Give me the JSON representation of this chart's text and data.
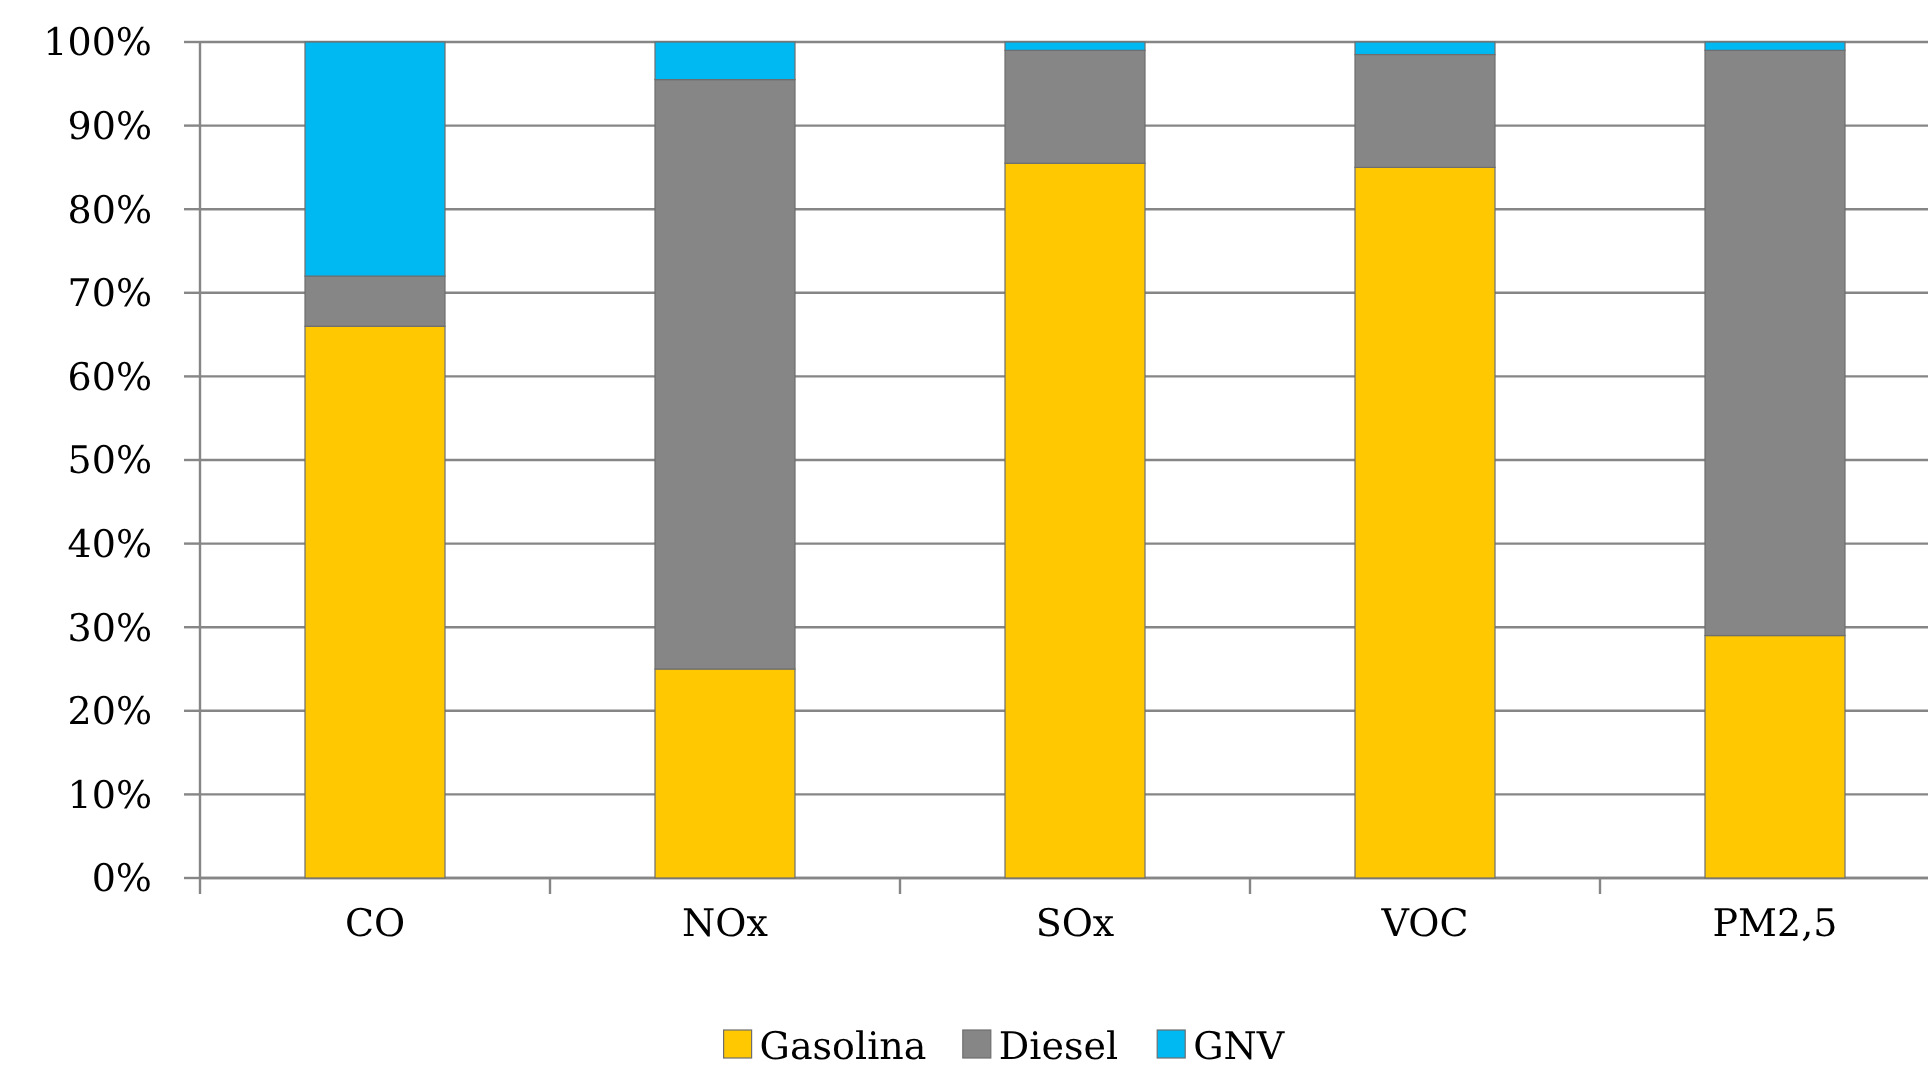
{
  "chart_data": {
    "type": "bar",
    "stacked": true,
    "categories": [
      "CO",
      "NOx",
      "SOx",
      "VOC",
      "PM2,5"
    ],
    "series": [
      {
        "name": "Gasolina",
        "color": "#ffc800",
        "values": [
          66,
          25,
          85.5,
          85,
          29
        ]
      },
      {
        "name": "Diesel",
        "color": "#868686",
        "values": [
          6,
          70.5,
          13.5,
          13.5,
          70
        ]
      },
      {
        "name": "GNV",
        "color": "#00b9f2",
        "values": [
          28,
          4.5,
          1,
          1.5,
          1
        ]
      }
    ],
    "ylim": [
      0,
      100
    ],
    "yticks": [
      {
        "value": 0,
        "label": "0%"
      },
      {
        "value": 10,
        "label": "10%"
      },
      {
        "value": 20,
        "label": "20%"
      },
      {
        "value": 30,
        "label": "30%"
      },
      {
        "value": 40,
        "label": "40%"
      },
      {
        "value": 50,
        "label": "50%"
      },
      {
        "value": 60,
        "label": "60%"
      },
      {
        "value": 70,
        "label": "70%"
      },
      {
        "value": 80,
        "label": "80%"
      },
      {
        "value": 90,
        "label": "90%"
      },
      {
        "value": 100,
        "label": "100%"
      }
    ],
    "grid": "y",
    "legend": "bottom"
  }
}
